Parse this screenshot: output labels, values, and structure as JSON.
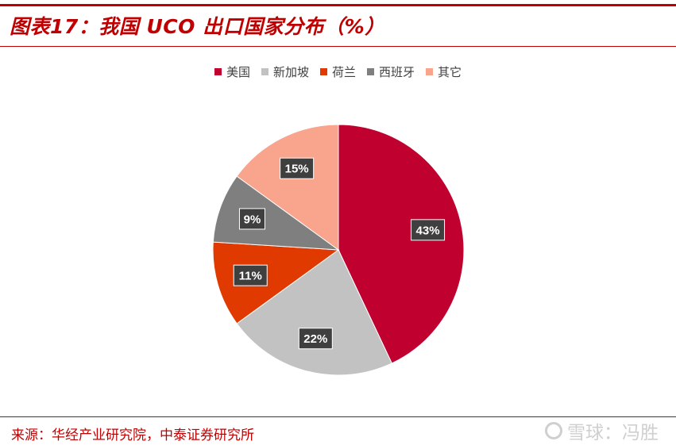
{
  "header": {
    "title": "图表17：我国 UCO 出口国家分布（%）"
  },
  "footer": {
    "source": "来源：华经产业研究院，中泰证券研究所"
  },
  "watermark": {
    "text": "雪球：冯胜"
  },
  "chart_data": {
    "type": "pie",
    "categories": [
      "美国",
      "新加坡",
      "荷兰",
      "西班牙",
      "其它"
    ],
    "values": [
      43,
      22,
      11,
      9,
      15
    ],
    "labels": [
      "43%",
      "22%",
      "11%",
      "9%",
      "15%"
    ],
    "colors": [
      "#c0002f",
      "#c2c2c2",
      "#e03a00",
      "#7f7f7f",
      "#f9a48c"
    ],
    "legend": "top",
    "label_box_color": "#3f3f3f"
  }
}
